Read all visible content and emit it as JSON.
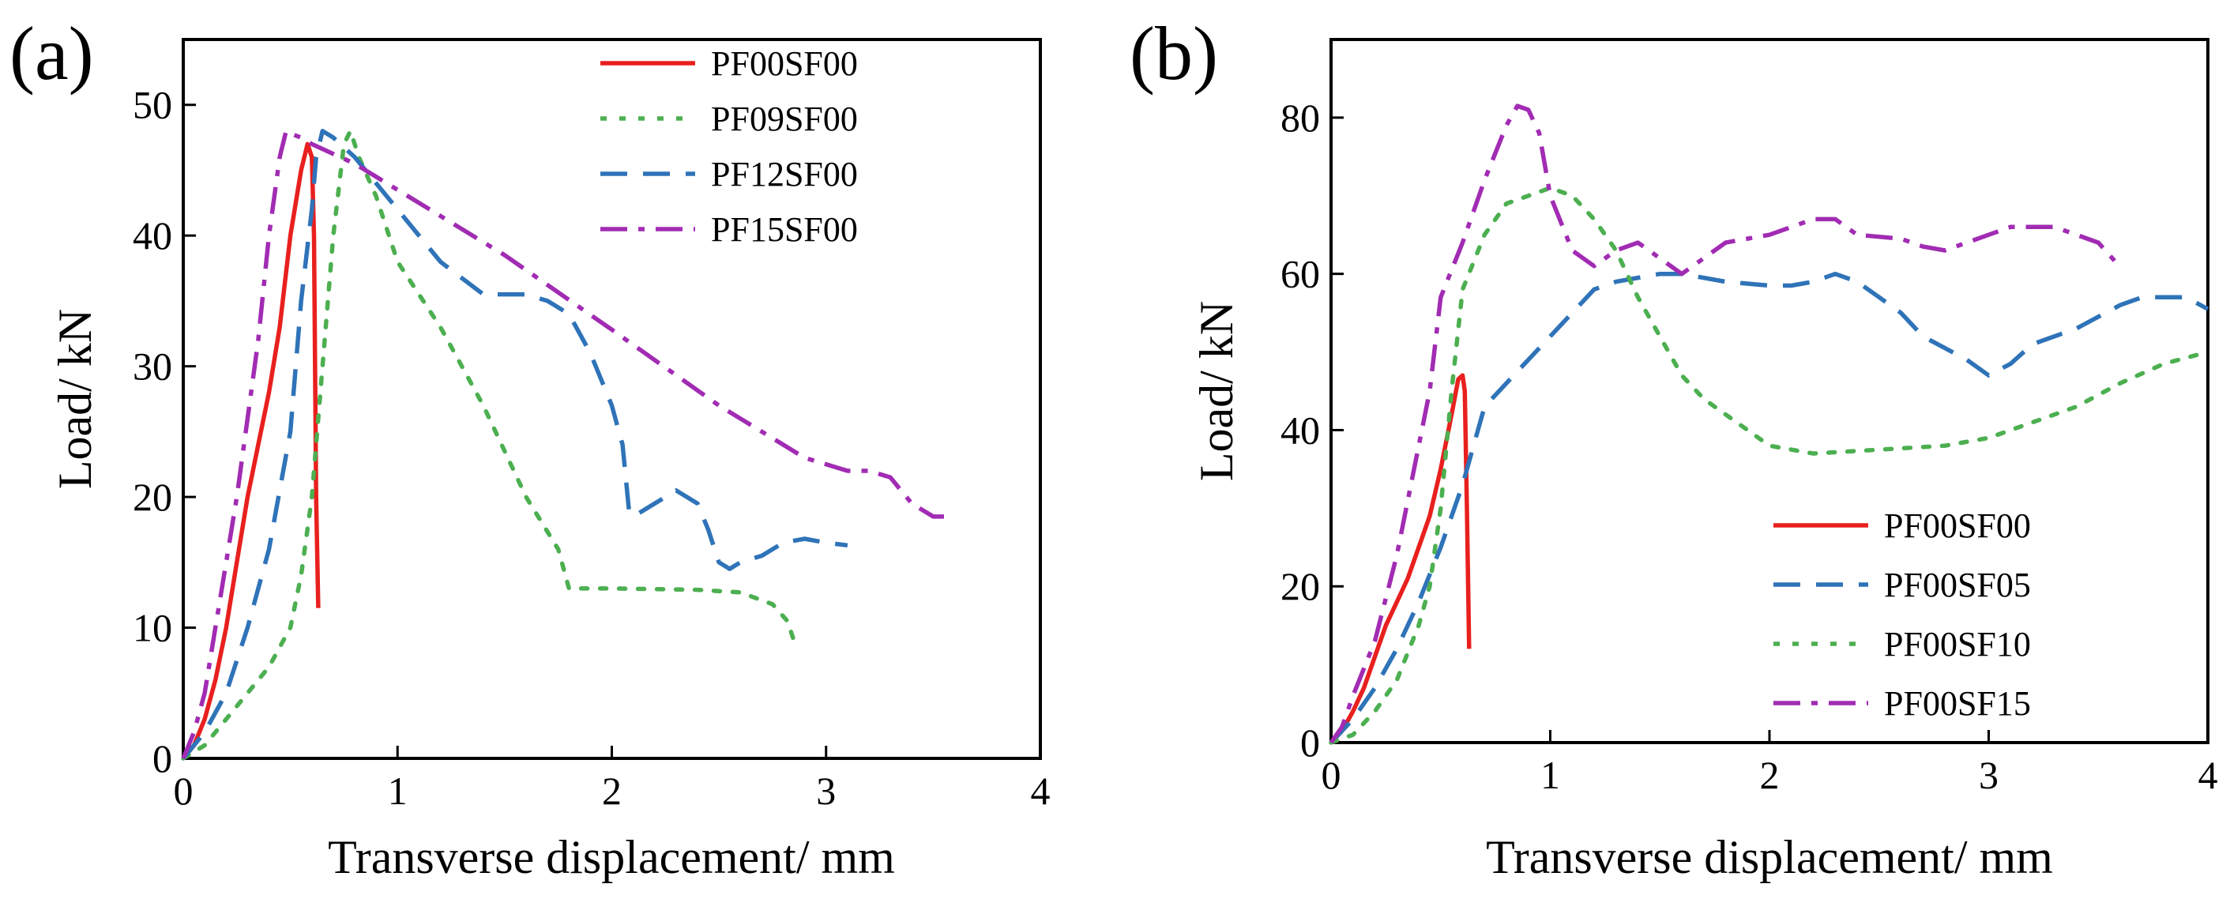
{
  "chart_data": [
    {
      "panel_label": "(a)",
      "type": "line",
      "xlabel": "Transverse displacement/ mm",
      "ylabel": "Load/ kN",
      "xlim": [
        0,
        4
      ],
      "ylim": [
        0,
        55
      ],
      "xticks": [
        "0",
        "1",
        "2",
        "3",
        "4"
      ],
      "yticks": [
        "0",
        "10",
        "20",
        "30",
        "40",
        "50"
      ],
      "legend_position": "top-right",
      "series": [
        {
          "name": "PF00SF00",
          "color": "#e8201e",
          "dash": "solid",
          "points": [
            [
              0,
              0
            ],
            [
              0.05,
              1
            ],
            [
              0.1,
              3
            ],
            [
              0.15,
              6
            ],
            [
              0.2,
              10
            ],
            [
              0.25,
              15
            ],
            [
              0.3,
              20
            ],
            [
              0.35,
              24
            ],
            [
              0.4,
              28
            ],
            [
              0.45,
              33
            ],
            [
              0.5,
              40
            ],
            [
              0.55,
              45
            ],
            [
              0.58,
              47
            ],
            [
              0.6,
              46
            ],
            [
              0.61,
              40
            ],
            [
              0.62,
              20
            ],
            [
              0.63,
              11.5
            ]
          ]
        },
        {
          "name": "PF09SF00",
          "color": "#4caf50",
          "dash": "dotted",
          "points": [
            [
              0,
              0
            ],
            [
              0.1,
              1
            ],
            [
              0.2,
              3
            ],
            [
              0.3,
              5
            ],
            [
              0.4,
              7
            ],
            [
              0.5,
              10
            ],
            [
              0.55,
              14
            ],
            [
              0.6,
              20
            ],
            [
              0.65,
              30
            ],
            [
              0.7,
              40
            ],
            [
              0.75,
              47
            ],
            [
              0.78,
              48
            ],
            [
              0.82,
              46
            ],
            [
              0.9,
              43
            ],
            [
              1.0,
              38
            ],
            [
              1.2,
              33
            ],
            [
              1.4,
              27
            ],
            [
              1.6,
              20
            ],
            [
              1.75,
              16
            ],
            [
              1.8,
              13
            ],
            [
              2.0,
              13
            ],
            [
              2.4,
              12.9
            ],
            [
              2.6,
              12.7
            ],
            [
              2.75,
              11.8
            ],
            [
              2.82,
              10.5
            ],
            [
              2.85,
              9
            ]
          ]
        },
        {
          "name": "PF12SF00",
          "color": "#2f73b8",
          "dash": "dashed",
          "points": [
            [
              0,
              0
            ],
            [
              0.1,
              2
            ],
            [
              0.2,
              5
            ],
            [
              0.3,
              10
            ],
            [
              0.4,
              16
            ],
            [
              0.5,
              25
            ],
            [
              0.55,
              35
            ],
            [
              0.6,
              42
            ],
            [
              0.62,
              46
            ],
            [
              0.65,
              48
            ],
            [
              0.7,
              47.5
            ],
            [
              0.8,
              46
            ],
            [
              1.0,
              42
            ],
            [
              1.2,
              38
            ],
            [
              1.4,
              35.5
            ],
            [
              1.6,
              35.5
            ],
            [
              1.7,
              35
            ],
            [
              1.8,
              34
            ],
            [
              1.9,
              31
            ],
            [
              2.0,
              27
            ],
            [
              2.05,
              24
            ],
            [
              2.08,
              19
            ],
            [
              2.1,
              18.5
            ],
            [
              2.2,
              19.5
            ],
            [
              2.3,
              20.5
            ],
            [
              2.4,
              19.5
            ],
            [
              2.45,
              17.5
            ],
            [
              2.5,
              15
            ],
            [
              2.55,
              14.5
            ],
            [
              2.6,
              15
            ],
            [
              2.7,
              15.5
            ],
            [
              2.8,
              16.5
            ],
            [
              2.9,
              16.8
            ],
            [
              3.0,
              16.5
            ],
            [
              3.1,
              16.3
            ]
          ]
        },
        {
          "name": "PF15SF00",
          "color": "#a12cb3",
          "dash": "dashdot",
          "points": [
            [
              0,
              0
            ],
            [
              0.05,
              2
            ],
            [
              0.1,
              5
            ],
            [
              0.15,
              10
            ],
            [
              0.2,
              15
            ],
            [
              0.25,
              20
            ],
            [
              0.3,
              26
            ],
            [
              0.35,
              32
            ],
            [
              0.4,
              40
            ],
            [
              0.45,
              46
            ],
            [
              0.48,
              48
            ],
            [
              0.5,
              47.8
            ],
            [
              0.55,
              47.5
            ],
            [
              0.6,
              47
            ],
            [
              0.8,
              45.5
            ],
            [
              1.0,
              43.5
            ],
            [
              1.5,
              38.5
            ],
            [
              2.0,
              32.8
            ],
            [
              2.5,
              27
            ],
            [
              2.7,
              25
            ],
            [
              2.9,
              23
            ],
            [
              3.0,
              22.5
            ],
            [
              3.1,
              22
            ],
            [
              3.2,
              22
            ],
            [
              3.3,
              21.5
            ],
            [
              3.4,
              19.5
            ],
            [
              3.5,
              18.5
            ],
            [
              3.6,
              18.5
            ]
          ]
        }
      ]
    },
    {
      "panel_label": "(b)",
      "type": "line",
      "xlabel": "Transverse displacement/ mm",
      "ylabel": "Load/ kN",
      "xlim": [
        0,
        4
      ],
      "ylim": [
        0,
        90
      ],
      "xticks": [
        "0",
        "1",
        "2",
        "3",
        "4"
      ],
      "yticks": [
        "0",
        "20",
        "40",
        "60",
        "80"
      ],
      "legend_position": "bottom-right",
      "series": [
        {
          "name": "PF00SF00",
          "color": "#e8201e",
          "dash": "solid",
          "points": [
            [
              0,
              0
            ],
            [
              0.05,
              1.5
            ],
            [
              0.1,
              4
            ],
            [
              0.15,
              7
            ],
            [
              0.2,
              11
            ],
            [
              0.25,
              15
            ],
            [
              0.3,
              18
            ],
            [
              0.35,
              21
            ],
            [
              0.4,
              25
            ],
            [
              0.45,
              29
            ],
            [
              0.5,
              35
            ],
            [
              0.55,
              42
            ],
            [
              0.58,
              46.5
            ],
            [
              0.6,
              47
            ],
            [
              0.61,
              45
            ],
            [
              0.62,
              30
            ],
            [
              0.63,
              12
            ]
          ]
        },
        {
          "name": "PF00SF05",
          "color": "#2f73b8",
          "dash": "dashed",
          "points": [
            [
              0,
              0
            ],
            [
              0.1,
              3
            ],
            [
              0.2,
              7
            ],
            [
              0.3,
              12
            ],
            [
              0.4,
              18
            ],
            [
              0.5,
              25
            ],
            [
              0.6,
              33
            ],
            [
              0.65,
              38
            ],
            [
              0.7,
              43
            ],
            [
              0.8,
              46
            ],
            [
              0.9,
              49
            ],
            [
              1.0,
              52
            ],
            [
              1.1,
              55
            ],
            [
              1.2,
              58
            ],
            [
              1.3,
              59
            ],
            [
              1.5,
              60
            ],
            [
              1.6,
              60
            ],
            [
              1.8,
              59
            ],
            [
              2.0,
              58.5
            ],
            [
              2.1,
              58.5
            ],
            [
              2.2,
              59
            ],
            [
              2.3,
              60
            ],
            [
              2.4,
              59
            ],
            [
              2.5,
              57
            ],
            [
              2.6,
              55
            ],
            [
              2.7,
              52
            ],
            [
              2.8,
              50.5
            ],
            [
              2.9,
              49
            ],
            [
              3.0,
              47
            ],
            [
              3.1,
              48.5
            ],
            [
              3.2,
              51
            ],
            [
              3.4,
              53
            ],
            [
              3.6,
              56
            ],
            [
              3.7,
              57
            ],
            [
              3.8,
              57
            ],
            [
              3.9,
              57
            ],
            [
              4.0,
              55.5
            ]
          ]
        },
        {
          "name": "PF00SF10",
          "color": "#4caf50",
          "dash": "dotted",
          "points": [
            [
              0,
              0
            ],
            [
              0.1,
              1
            ],
            [
              0.2,
              4
            ],
            [
              0.3,
              8
            ],
            [
              0.4,
              15
            ],
            [
              0.45,
              20
            ],
            [
              0.5,
              30
            ],
            [
              0.55,
              45
            ],
            [
              0.6,
              58
            ],
            [
              0.7,
              65
            ],
            [
              0.8,
              69
            ],
            [
              0.9,
              70
            ],
            [
              1.0,
              71
            ],
            [
              1.1,
              70
            ],
            [
              1.2,
              67
            ],
            [
              1.3,
              63
            ],
            [
              1.4,
              57
            ],
            [
              1.5,
              52
            ],
            [
              1.6,
              47
            ],
            [
              1.7,
              44
            ],
            [
              1.8,
              42
            ],
            [
              1.9,
              40
            ],
            [
              2.0,
              38
            ],
            [
              2.2,
              37
            ],
            [
              2.5,
              37.5
            ],
            [
              2.8,
              38
            ],
            [
              3.0,
              39
            ],
            [
              3.2,
              41
            ],
            [
              3.4,
              43
            ],
            [
              3.6,
              46
            ],
            [
              3.8,
              48.5
            ],
            [
              4.0,
              50
            ]
          ]
        },
        {
          "name": "PF00SF15",
          "color": "#a12cb3",
          "dash": "dashdot",
          "points": [
            [
              0,
              0
            ],
            [
              0.05,
              2
            ],
            [
              0.1,
              6
            ],
            [
              0.2,
              13
            ],
            [
              0.3,
              24
            ],
            [
              0.4,
              38
            ],
            [
              0.45,
              45
            ],
            [
              0.5,
              57
            ],
            [
              0.6,
              64
            ],
            [
              0.7,
              72
            ],
            [
              0.8,
              79
            ],
            [
              0.85,
              81.5
            ],
            [
              0.9,
              81
            ],
            [
              0.95,
              78
            ],
            [
              1.0,
              70
            ],
            [
              1.1,
              63
            ],
            [
              1.2,
              61
            ],
            [
              1.3,
              63
            ],
            [
              1.4,
              64
            ],
            [
              1.5,
              62
            ],
            [
              1.6,
              60
            ],
            [
              1.7,
              62
            ],
            [
              1.8,
              64
            ],
            [
              2.0,
              65
            ],
            [
              2.1,
              66
            ],
            [
              2.2,
              67
            ],
            [
              2.3,
              67
            ],
            [
              2.4,
              65
            ],
            [
              2.6,
              64.5
            ],
            [
              2.7,
              63.5
            ],
            [
              2.8,
              63
            ],
            [
              2.9,
              64
            ],
            [
              3.0,
              65
            ],
            [
              3.1,
              66
            ],
            [
              3.3,
              66
            ],
            [
              3.4,
              65
            ],
            [
              3.5,
              64
            ],
            [
              3.58,
              61.5
            ]
          ]
        }
      ]
    }
  ]
}
